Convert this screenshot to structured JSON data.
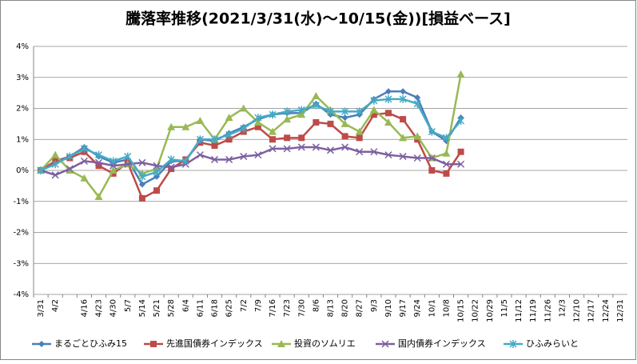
{
  "chart_data": {
    "type": "line",
    "title": "騰落率推移(2021/3/31(水)～10/15(金))[損益ベース]",
    "categories": [
      "3/31",
      "4/2",
      null,
      "4/16",
      "4/23",
      "4/30",
      "5/7",
      "5/14",
      "5/21",
      "5/28",
      "6/4",
      "6/11",
      "6/18",
      "6/25",
      "7/2",
      "7/9",
      "7/16",
      "7/23",
      "7/30",
      "8/6",
      "8/13",
      "8/20",
      "8/27",
      "9/3",
      "9/10",
      "9/17",
      "9/24",
      "10/1",
      "10/8",
      "10/15",
      "10/22",
      "10/29",
      "11/5",
      "11/12",
      "11/19",
      "11/26",
      "12/3",
      "12/10",
      "12/17",
      "12/24",
      "12/31"
    ],
    "series": [
      {
        "name": "まるごとひふみ15",
        "color": "#4a7ebb",
        "marker": "diamond",
        "values": [
          0,
          0.3,
          0.45,
          0.75,
          0.45,
          0.25,
          0.35,
          -0.45,
          -0.2,
          0.3,
          0.3,
          1.0,
          0.95,
          1.2,
          1.4,
          1.65,
          1.8,
          1.85,
          1.85,
          2.15,
          1.8,
          1.7,
          1.8,
          2.3,
          2.55,
          2.55,
          2.35,
          1.25,
          0.95,
          1.7,
          null,
          null,
          null,
          null,
          null,
          null,
          null,
          null,
          null,
          null,
          null
        ]
      },
      {
        "name": "先進国債券インデックス",
        "color": "#be4b48",
        "marker": "square",
        "values": [
          0,
          0.3,
          0.4,
          0.6,
          0.15,
          -0.1,
          0.25,
          -0.9,
          -0.65,
          0.05,
          0.35,
          0.9,
          0.8,
          1.0,
          1.25,
          1.4,
          1.0,
          1.05,
          1.05,
          1.55,
          1.5,
          1.1,
          1.05,
          1.8,
          1.85,
          1.65,
          1.0,
          0.0,
          -0.1,
          0.6,
          null,
          null,
          null,
          null,
          null,
          null,
          null,
          null,
          null,
          null,
          null
        ]
      },
      {
        "name": "投資のソムリエ",
        "color": "#98b954",
        "marker": "triangle",
        "values": [
          0,
          0.5,
          0.0,
          -0.25,
          -0.85,
          0.0,
          0.2,
          -0.1,
          0.05,
          1.4,
          1.4,
          1.6,
          1.0,
          1.7,
          2.0,
          1.55,
          1.25,
          1.65,
          1.8,
          2.4,
          1.95,
          1.5,
          1.25,
          1.95,
          1.55,
          1.05,
          1.1,
          0.4,
          0.55,
          3.1,
          null,
          null,
          null,
          null,
          null,
          null,
          null,
          null,
          null,
          null,
          null
        ]
      },
      {
        "name": "国内債券インデックス",
        "color": "#7d60a0",
        "marker": "x",
        "values": [
          0,
          -0.15,
          0.05,
          0.3,
          0.25,
          0.15,
          0.2,
          0.25,
          0.15,
          0.1,
          0.2,
          0.5,
          0.35,
          0.35,
          0.45,
          0.5,
          0.7,
          0.7,
          0.75,
          0.75,
          0.65,
          0.75,
          0.6,
          0.6,
          0.5,
          0.45,
          0.4,
          0.4,
          0.2,
          0.2,
          null,
          null,
          null,
          null,
          null,
          null,
          null,
          null,
          null,
          null,
          null
        ]
      },
      {
        "name": "ひふみらいと",
        "color": "#46aac5",
        "marker": "star",
        "values": [
          0,
          0.2,
          0.45,
          0.7,
          0.5,
          0.3,
          0.45,
          -0.2,
          -0.05,
          0.35,
          0.3,
          1.0,
          1.0,
          1.15,
          1.35,
          1.7,
          1.8,
          1.9,
          1.95,
          2.1,
          1.9,
          1.9,
          1.9,
          2.25,
          2.3,
          2.3,
          2.15,
          1.25,
          1.05,
          1.6,
          null,
          null,
          null,
          null,
          null,
          null,
          null,
          null,
          null,
          null,
          null
        ]
      }
    ],
    "ylim": [
      -4,
      4
    ],
    "yticks": [
      {
        "value": -4,
        "label": "-4%"
      },
      {
        "value": -3,
        "label": "-3%"
      },
      {
        "value": -2,
        "label": "-2%"
      },
      {
        "value": -1,
        "label": "-1%"
      },
      {
        "value": 0,
        "label": "0%"
      },
      {
        "value": 1,
        "label": "1%"
      },
      {
        "value": 2,
        "label": "2%"
      },
      {
        "value": 3,
        "label": "3%"
      },
      {
        "value": 4,
        "label": "4%"
      }
    ],
    "grid": true,
    "legend": "bottom"
  }
}
